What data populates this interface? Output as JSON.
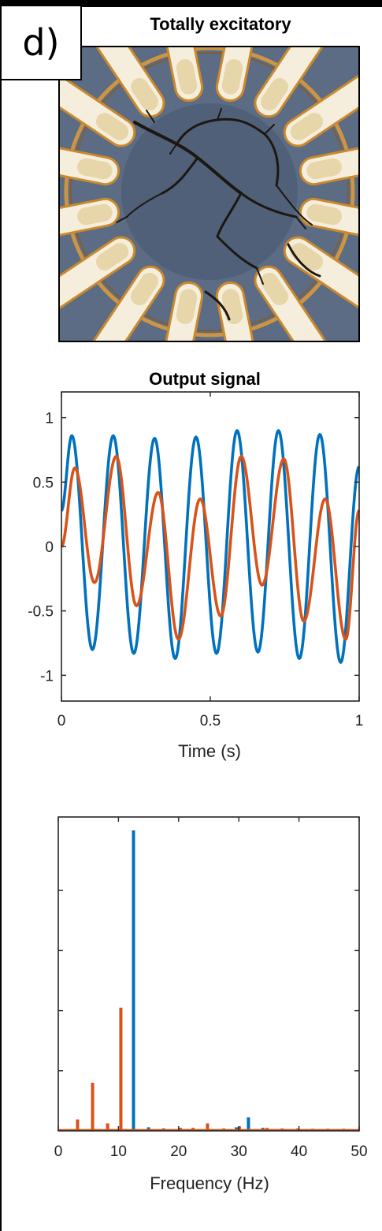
{
  "panel_label": "d)",
  "photo_title": "Totally excitatory",
  "chart_data": [
    {
      "type": "line",
      "title": "Output signal",
      "xlabel": "Time (s)",
      "ylabel": "",
      "xlim": [
        0,
        1
      ],
      "ylim": [
        -1.2,
        1.2
      ],
      "xticks": [
        0,
        0.5,
        1
      ],
      "xtick_labels": [
        "0",
        "0.5",
        "1"
      ],
      "yticks": [
        1,
        0.5,
        0,
        -0.5,
        -1
      ],
      "ytick_labels": [
        "1",
        "0.5",
        "0",
        "-0.5",
        "-1"
      ],
      "series": [
        {
          "color": "#0072BD",
          "x": [
            0,
            0.035,
            0.104,
            0.174,
            0.243,
            0.313,
            0.382,
            0.452,
            0.521,
            0.59,
            0.66,
            0.729,
            0.799,
            0.868,
            0.938,
            1.0
          ],
          "y": [
            0.28,
            0.86,
            -0.8,
            0.86,
            -0.83,
            0.84,
            -0.87,
            0.85,
            -0.83,
            0.9,
            -0.82,
            0.9,
            -0.87,
            0.87,
            -0.9,
            0.62
          ]
        },
        {
          "color": "#D95319",
          "x": [
            0,
            0.045,
            0.111,
            0.184,
            0.252,
            0.325,
            0.393,
            0.466,
            0.535,
            0.604,
            0.674,
            0.747,
            0.814,
            0.886,
            0.955,
            1.0
          ],
          "y": [
            0.0,
            0.61,
            -0.28,
            0.7,
            -0.46,
            0.42,
            -0.72,
            0.37,
            -0.54,
            0.7,
            -0.3,
            0.68,
            -0.58,
            0.37,
            -0.72,
            0.28
          ]
        }
      ]
    },
    {
      "type": "bar",
      "title": "",
      "xlabel": "Frequency (Hz)",
      "ylabel": "",
      "xlim": [
        0,
        50
      ],
      "ylim": [
        0,
        1
      ],
      "xticks": [
        0,
        10,
        20,
        30,
        40,
        50
      ],
      "xtick_labels": [
        "0",
        "10",
        "20",
        "30",
        "40",
        "50"
      ],
      "yticks": [
        0.2,
        0.4,
        0.6,
        0.8
      ],
      "series": [
        {
          "color": "#0072BD",
          "x": [
            12.5,
            15,
            17.5,
            29.6,
            31.6,
            34
          ],
          "values": [
            1.0,
            0.012,
            0.008,
            0.012,
            0.045,
            0.01
          ]
        },
        {
          "color": "#D95319",
          "x": [
            3.2,
            5.7,
            8.2,
            10.4,
            20.3,
            22.4,
            24.8,
            27.5,
            30.1,
            34.7,
            37.2,
            39.8,
            42.3,
            44.8,
            47.4
          ],
          "values": [
            0.038,
            0.16,
            0.025,
            0.41,
            0.01,
            0.01,
            0.025,
            0.008,
            0.015,
            0.01,
            0.008,
            0.008,
            0.007,
            0.007,
            0.007
          ]
        }
      ]
    }
  ]
}
